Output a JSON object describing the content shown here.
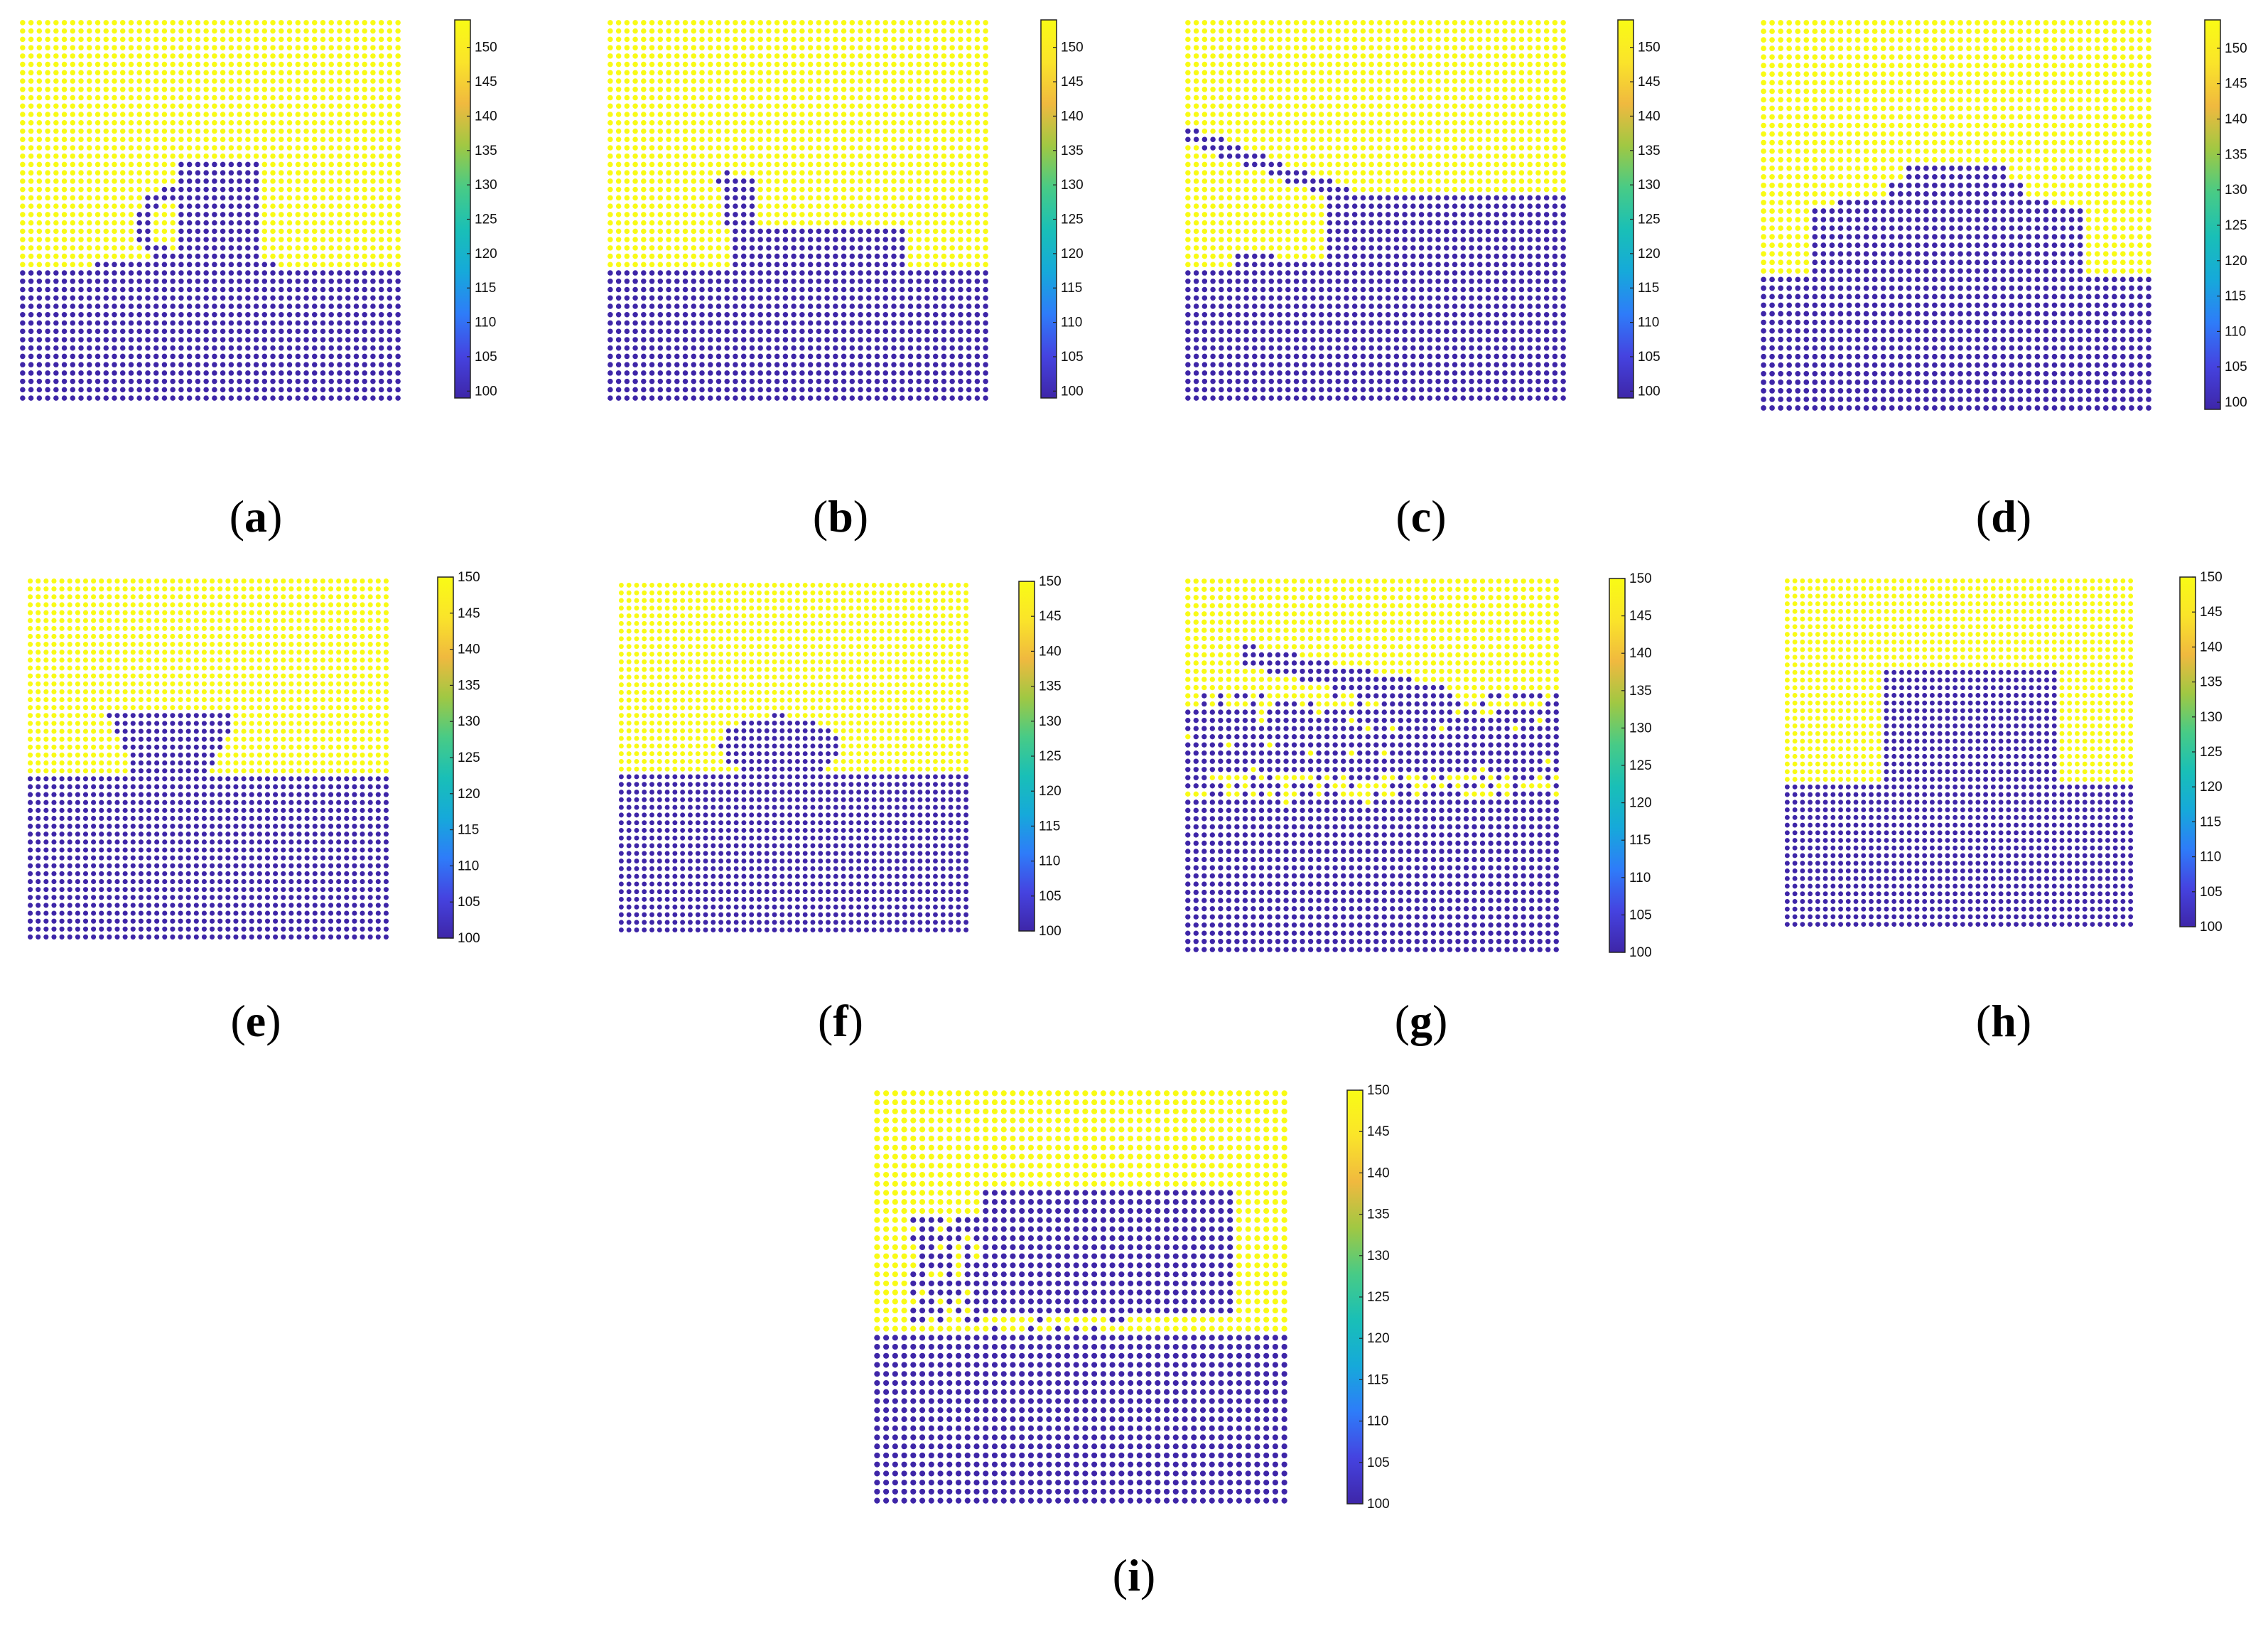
{
  "colorbar_colors": {
    "low": "#3e26a8",
    "stops": [
      "#3e26a8",
      "#4543e0",
      "#2e7cf9",
      "#16a9da",
      "#19bfb7",
      "#48cb86",
      "#a0c843",
      "#f0b93f",
      "#fae42a",
      "#f9fb15"
    ],
    "high": "#f9fb15"
  },
  "chart_data": [
    {
      "id": "a",
      "label": "a",
      "type": "heatmap",
      "grid": [
        46,
        46
      ],
      "shape": "mug",
      "values": [
        100,
        150
      ],
      "colorbar_ticks": [
        "100",
        "105",
        "110",
        "115",
        "120",
        "125",
        "130",
        "135",
        "140",
        "145",
        "150"
      ],
      "colorbar_range": [
        99,
        154
      ]
    },
    {
      "id": "b",
      "label": "b",
      "type": "heatmap",
      "grid": [
        46,
        46
      ],
      "shape": "teapot",
      "values": [
        100,
        150
      ],
      "colorbar_ticks": [
        "100",
        "105",
        "110",
        "115",
        "120",
        "125",
        "130",
        "135",
        "140",
        "145",
        "150"
      ],
      "colorbar_range": [
        99,
        154
      ]
    },
    {
      "id": "c",
      "label": "c",
      "type": "heatmap",
      "grid": [
        46,
        46
      ],
      "shape": "tank",
      "values": [
        100,
        150
      ],
      "colorbar_ticks": [
        "100",
        "105",
        "110",
        "115",
        "120",
        "125",
        "130",
        "135",
        "140",
        "145",
        "150"
      ],
      "colorbar_range": [
        99,
        154
      ]
    },
    {
      "id": "d",
      "label": "d",
      "type": "heatmap",
      "grid": [
        46,
        46
      ],
      "shape": "car",
      "values": [
        100,
        150
      ],
      "colorbar_ticks": [
        "100",
        "105",
        "110",
        "115",
        "120",
        "125",
        "130",
        "135",
        "140",
        "145",
        "150"
      ],
      "colorbar_range": [
        99,
        154
      ]
    },
    {
      "id": "e",
      "label": "e",
      "type": "heatmap",
      "grid": [
        46,
        46
      ],
      "shape": "bowl",
      "values": [
        100,
        150
      ],
      "colorbar_ticks": [
        "100",
        "105",
        "110",
        "115",
        "120",
        "125",
        "130",
        "135",
        "140",
        "145",
        "150"
      ],
      "colorbar_range": [
        100,
        150
      ]
    },
    {
      "id": "f",
      "label": "f",
      "type": "heatmap",
      "grid": [
        46,
        46
      ],
      "shape": "blob",
      "values": [
        100,
        150
      ],
      "colorbar_ticks": [
        "100",
        "105",
        "110",
        "115",
        "120",
        "125",
        "130",
        "135",
        "140",
        "145",
        "150"
      ],
      "colorbar_range": [
        100,
        150
      ]
    },
    {
      "id": "g",
      "label": "g",
      "type": "heatmap",
      "grid": [
        46,
        46
      ],
      "shape": "tank_noisy",
      "values": [
        100,
        150
      ],
      "colorbar_ticks": [
        "100",
        "105",
        "110",
        "115",
        "120",
        "125",
        "130",
        "135",
        "140",
        "145",
        "150"
      ],
      "colorbar_range": [
        100,
        150
      ]
    },
    {
      "id": "h",
      "label": "h",
      "type": "heatmap",
      "grid": [
        46,
        46
      ],
      "shape": "box",
      "values": [
        100,
        150
      ],
      "colorbar_ticks": [
        "100",
        "105",
        "110",
        "115",
        "120",
        "125",
        "130",
        "135",
        "140",
        "145",
        "150"
      ],
      "colorbar_range": [
        100,
        150
      ]
    },
    {
      "id": "i",
      "label": "i",
      "type": "heatmap",
      "grid": [
        46,
        46
      ],
      "shape": "truck",
      "values": [
        100,
        150
      ],
      "colorbar_ticks": [
        "100",
        "105",
        "110",
        "115",
        "120",
        "125",
        "130",
        "135",
        "140",
        "145",
        "150"
      ],
      "colorbar_range": [
        100,
        150
      ]
    }
  ]
}
